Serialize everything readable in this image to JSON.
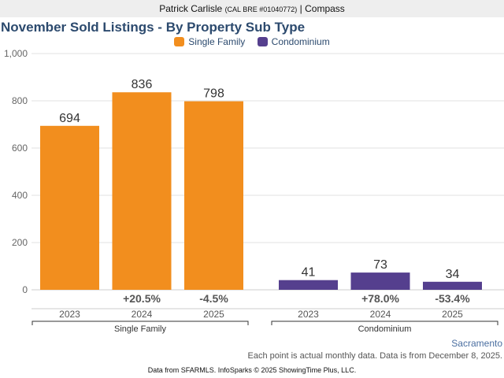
{
  "header": {
    "agent_name": "Patrick Carlisle",
    "license": "(CAL BRE #01040772)",
    "separator": "|",
    "brokerage": "Compass"
  },
  "region_link": "Sacramento",
  "note": "Each point is actual monthly data. Data is from December 8, 2025.",
  "footer": "Data from SFARMLS. InfoSparks © 2025 ShowingTime Plus, LLC.",
  "chart_data": {
    "type": "bar",
    "title": "November Sold Listings - By Property Sub Type",
    "xlabel": "",
    "ylabel": "",
    "ylim": [
      0,
      1000
    ],
    "yticks": [
      0,
      200,
      400,
      600,
      800,
      1000
    ],
    "ytick_labels": [
      "0",
      "200",
      "400",
      "600",
      "800",
      "1,000"
    ],
    "grid": true,
    "legend_position": "top-center",
    "groups": [
      "Single Family",
      "Condominium"
    ],
    "categories": [
      "2023",
      "2024",
      "2025"
    ],
    "series": [
      {
        "name": "Single Family",
        "color": "#f28e1e",
        "values": [
          694,
          836,
          798
        ],
        "changes": [
          "",
          "+20.5%",
          "-4.5%"
        ]
      },
      {
        "name": "Condominium",
        "color": "#553f8e",
        "values": [
          41,
          73,
          34
        ],
        "changes": [
          "",
          "+78.0%",
          "-53.4%"
        ]
      }
    ]
  }
}
